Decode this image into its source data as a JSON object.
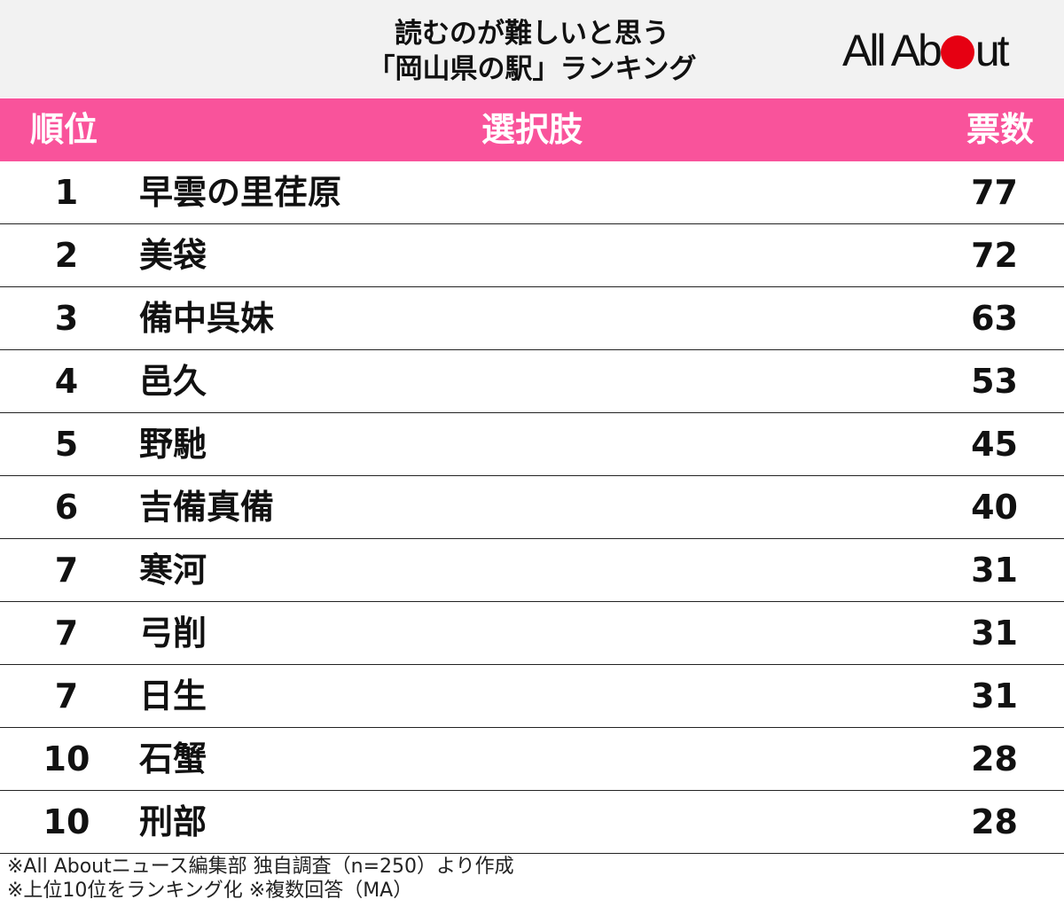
{
  "title": {
    "line1": "読むのが難しいと思う",
    "line2": "「岡山県の駅」ランキング"
  },
  "logo": {
    "text_before": "All Ab",
    "text_after": "ut",
    "dot_color": "#e60012"
  },
  "colors": {
    "header_bg": "#f9539b",
    "title_bg": "#f2f2f2"
  },
  "chart_data": {
    "type": "table",
    "columns": [
      "順位",
      "選択肢",
      "票数"
    ],
    "rows": [
      {
        "rank": "1",
        "name": "早雲の里荏原",
        "votes": 77
      },
      {
        "rank": "2",
        "name": "美袋",
        "votes": 72
      },
      {
        "rank": "3",
        "name": "備中呉妹",
        "votes": 63
      },
      {
        "rank": "4",
        "name": "邑久",
        "votes": 53
      },
      {
        "rank": "5",
        "name": "野馳",
        "votes": 45
      },
      {
        "rank": "6",
        "name": "吉備真備",
        "votes": 40
      },
      {
        "rank": "7",
        "name": "寒河",
        "votes": 31
      },
      {
        "rank": "7",
        "name": "弓削",
        "votes": 31
      },
      {
        "rank": "7",
        "name": "日生",
        "votes": 31
      },
      {
        "rank": "10",
        "name": "石蟹",
        "votes": 28
      },
      {
        "rank": "10",
        "name": "刑部",
        "votes": 28
      }
    ]
  },
  "footer": {
    "line1": "※All Aboutニュース編集部 独自調査（n=250）より作成",
    "line2": "※上位10位をランキング化 ※複数回答（MA）"
  }
}
